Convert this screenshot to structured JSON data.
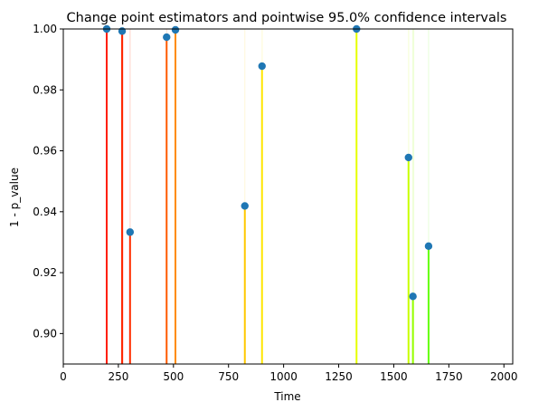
{
  "chart_data": {
    "type": "scatter",
    "title": "Change point estimators and pointwise 95.0% confidence intervals",
    "xlabel": "Time",
    "ylabel": "1 - p_value",
    "xlim": [
      0,
      2040
    ],
    "ylim": [
      0.89,
      1.0
    ],
    "xticks": [
      0,
      250,
      500,
      750,
      1000,
      1250,
      1500,
      1750,
      2000
    ],
    "yticks": [
      0.9,
      0.92,
      0.94,
      0.96,
      0.98,
      1.0
    ],
    "xtick_labels": [
      "0",
      "250",
      "500",
      "750",
      "1000",
      "1250",
      "1500",
      "1750",
      "2000"
    ],
    "ytick_labels": [
      "0.90",
      "0.92",
      "0.94",
      "0.96",
      "0.98",
      "1.00"
    ],
    "grid": false,
    "marker_color": "#1f77b4",
    "points": [
      {
        "x": 197,
        "y": 1.0,
        "color": "#ff1e00",
        "ci": [
          193,
          201
        ]
      },
      {
        "x": 267,
        "y": 0.9993,
        "color": "#ff2600",
        "ci": [
          261,
          274
        ]
      },
      {
        "x": 303,
        "y": 0.9333,
        "color": "#ff2e00",
        "ci": [
          300,
          306
        ]
      },
      {
        "x": 469,
        "y": 0.9973,
        "color": "#ff5a00",
        "ci": [
          467,
          472
        ]
      },
      {
        "x": 509,
        "y": 0.9997,
        "color": "#ff8c00",
        "ci": [
          506,
          512
        ]
      },
      {
        "x": 824,
        "y": 0.9419,
        "color": "#ffc800",
        "ci": [
          822,
          826
        ]
      },
      {
        "x": 902,
        "y": 0.9878,
        "color": "#ffe600",
        "ci": [
          900,
          905
        ]
      },
      {
        "x": 1331,
        "y": 1.0,
        "color": "#e6ff00",
        "ci": [
          1329,
          1333
        ]
      },
      {
        "x": 1567,
        "y": 0.9578,
        "color": "#c8ff00",
        "ci": [
          1565,
          1570
        ]
      },
      {
        "x": 1587,
        "y": 0.9122,
        "color": "#96ff00",
        "ci": [
          1584,
          1593
        ]
      },
      {
        "x": 1658,
        "y": 0.9287,
        "color": "#64ff00",
        "ci": [
          1656,
          1660
        ]
      }
    ]
  }
}
